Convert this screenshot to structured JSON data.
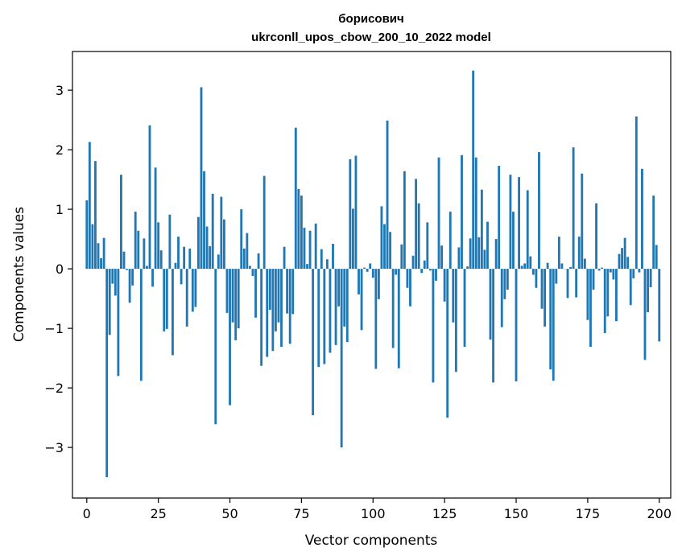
{
  "chart_data": {
    "type": "bar",
    "title": "борисович",
    "subtitle": "ukrconll_upos_cbow_200_10_2022 model",
    "xlabel": "Vector components",
    "ylabel": "Components values",
    "xlim": [
      -5,
      204
    ],
    "ylim": [
      -3.85,
      3.65
    ],
    "xticks": [
      0,
      25,
      50,
      75,
      100,
      125,
      150,
      175,
      200
    ],
    "yticks": [
      -3,
      -2,
      -1,
      0,
      1,
      2,
      3
    ],
    "bar_color": "#1f77b4",
    "grid": false,
    "legend": "none",
    "series": [
      {
        "values": [
          1.15,
          2.13,
          0.75,
          1.81,
          0.43,
          0.18,
          0.52,
          -3.5,
          -1.11,
          -0.25,
          -0.45,
          -1.8,
          1.58,
          0.29,
          -0.02,
          -0.57,
          -0.28,
          0.96,
          0.64,
          -1.88,
          0.51,
          0.05,
          2.41,
          -0.3,
          1.7,
          0.78,
          0.31,
          -1.05,
          -1.01,
          0.91,
          -1.45,
          0.1,
          0.54,
          -0.26,
          0.37,
          -0.97,
          0.34,
          -0.72,
          -0.64,
          0.87,
          3.05,
          1.64,
          0.71,
          0.38,
          1.26,
          -2.61,
          0.24,
          1.21,
          0.83,
          -0.74,
          -2.29,
          -0.9,
          -1.2,
          -1.0,
          1.0,
          0.34,
          0.6,
          0.05,
          -0.12,
          -0.82,
          0.26,
          -1.63,
          1.56,
          -1.48,
          -0.69,
          -1.38,
          -1.05,
          -0.9,
          -1.31,
          0.37,
          -0.75,
          -1.26,
          -0.76,
          2.37,
          1.34,
          1.23,
          0.69,
          0.08,
          0.64,
          -2.46,
          0.76,
          -1.65,
          0.33,
          -1.6,
          0.16,
          -1.41,
          0.42,
          -1.28,
          -0.63,
          -3.0,
          -0.97,
          -1.23,
          1.84,
          1.01,
          1.9,
          -0.43,
          -1.03,
          0.02,
          -0.05,
          0.09,
          -0.15,
          -1.68,
          -0.51,
          1.05,
          0.75,
          2.49,
          0.62,
          -1.33,
          -0.1,
          -1.67,
          0.41,
          1.64,
          -0.32,
          -0.63,
          0.22,
          1.51,
          1.1,
          -0.07,
          0.14,
          0.78,
          -0.03,
          -1.91,
          -0.2,
          1.87,
          0.39,
          -0.55,
          -2.5,
          0.96,
          -0.9,
          -1.73,
          0.36,
          1.91,
          -1.31,
          0.04,
          0.51,
          3.33,
          1.87,
          0.53,
          1.33,
          0.32,
          0.79,
          -1.19,
          -1.91,
          0.5,
          1.73,
          -0.98,
          -0.51,
          -0.35,
          1.58,
          0.96,
          -1.89,
          1.54,
          0.05,
          0.09,
          1.32,
          0.21,
          -0.1,
          -0.32,
          1.96,
          -0.67,
          -0.97,
          0.1,
          -1.69,
          -1.88,
          -0.25,
          0.54,
          0.09,
          0.0,
          -0.49,
          0.03,
          2.04,
          -0.48,
          0.54,
          1.6,
          0.17,
          -0.86,
          -1.31,
          -0.35,
          1.1,
          -0.03,
          0.02,
          -1.08,
          -0.8,
          -0.06,
          -0.18,
          -0.88,
          0.25,
          0.35,
          0.52,
          0.2,
          -0.61,
          -0.16,
          2.56,
          -0.06,
          1.68,
          -1.53,
          -0.73,
          -0.31,
          1.23,
          0.4,
          -1.22
        ]
      }
    ]
  }
}
